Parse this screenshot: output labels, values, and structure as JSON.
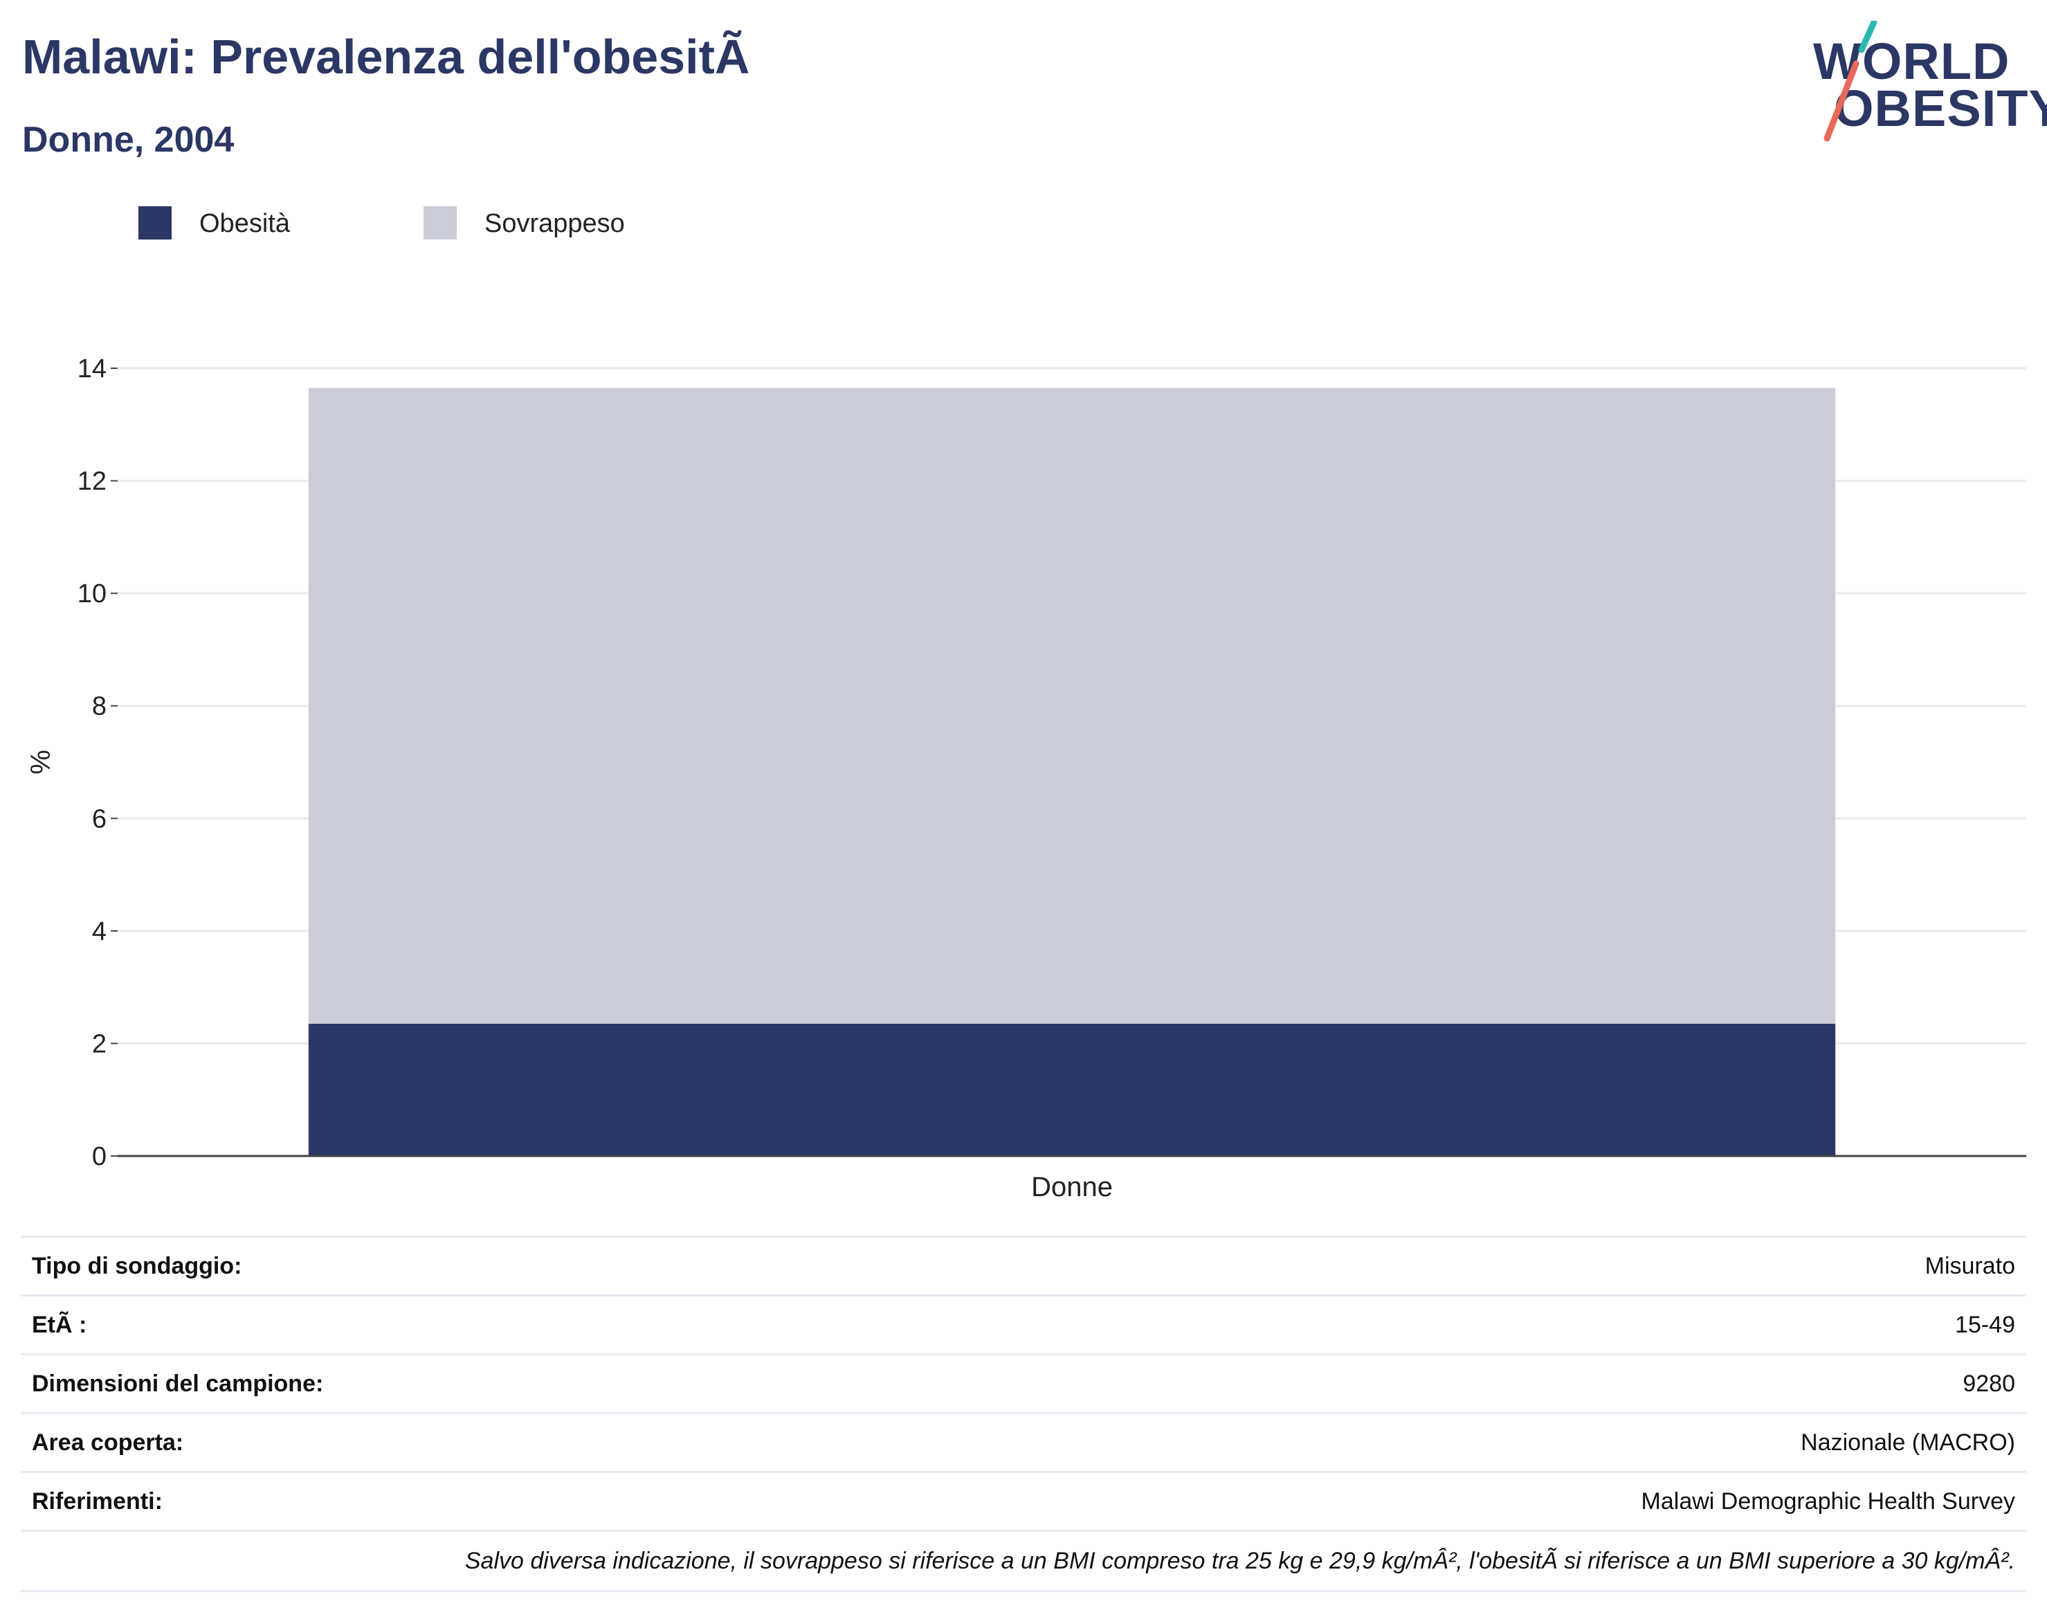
{
  "header": {
    "title": "Malawi: Prevalenza dell'obesitÃ",
    "subtitle": "Donne, 2004"
  },
  "logo": {
    "line1": "WORLD",
    "line2": "OBESITY",
    "slash_colors": [
      "#2bb7b3",
      "#e8685a"
    ]
  },
  "legend": [
    {
      "label": "Obesità",
      "color": "#2b3764"
    },
    {
      "label": "Sovrappeso",
      "color": "#cacdd8"
    }
  ],
  "chart_data": {
    "type": "bar",
    "stacked": true,
    "categories": [
      "Donne"
    ],
    "series": [
      {
        "name": "Obesità",
        "values": [
          2.35
        ],
        "color": "#2b3764"
      },
      {
        "name": "Sovrappeso",
        "values": [
          11.3
        ],
        "color": "#cacdd8"
      }
    ],
    "ylabel": "%",
    "xlabel": "",
    "ylim": [
      0,
      14
    ],
    "yticks": [
      0,
      2,
      4,
      6,
      8,
      10,
      12,
      14
    ],
    "grid": true
  },
  "info": {
    "rows": [
      {
        "label": "Tipo di sondaggio:",
        "value": "Misurato"
      },
      {
        "label": "EtÃ :",
        "value": "15-49"
      },
      {
        "label": "Dimensioni del campione:",
        "value": "9280"
      },
      {
        "label": "Area coperta:",
        "value": "Nazionale (MACRO)"
      },
      {
        "label": "Riferimenti:",
        "value": "Malawi Demographic Health Survey"
      }
    ],
    "note": "Salvo diversa indicazione, il sovrappeso si riferisce a un BMI compreso tra 25 kg e 29,9 kg/mÂ², l'obesitÃ  si riferisce a un BMI superiore a 30 kg/mÂ²."
  }
}
